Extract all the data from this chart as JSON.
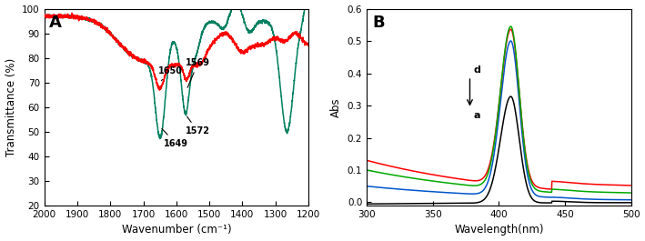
{
  "panel_A": {
    "title": "A",
    "xlabel": "Wavenumber (cm⁻¹)",
    "ylabel": "Transmittance (%)",
    "xlim": [
      2000,
      1200
    ],
    "ylim": [
      20,
      100
    ],
    "yticks": [
      20,
      30,
      40,
      50,
      60,
      70,
      80,
      90,
      100
    ],
    "xticks": [
      2000,
      1900,
      1800,
      1700,
      1600,
      1500,
      1400,
      1300,
      1200
    ],
    "red_color": "#ff0000",
    "green_color": "#008060"
  },
  "panel_B": {
    "title": "B",
    "xlabel": "Wavelength(nm)",
    "ylabel": "Abs",
    "xlim": [
      300,
      500
    ],
    "ylim": [
      -0.01,
      0.6
    ],
    "yticks": [
      0.0,
      0.1,
      0.2,
      0.3,
      0.4,
      0.5,
      0.6
    ],
    "xticks": [
      300,
      350,
      400,
      450,
      500
    ],
    "colors": [
      "#000000",
      "#0055cc",
      "#ff0000",
      "#00aa00"
    ]
  }
}
